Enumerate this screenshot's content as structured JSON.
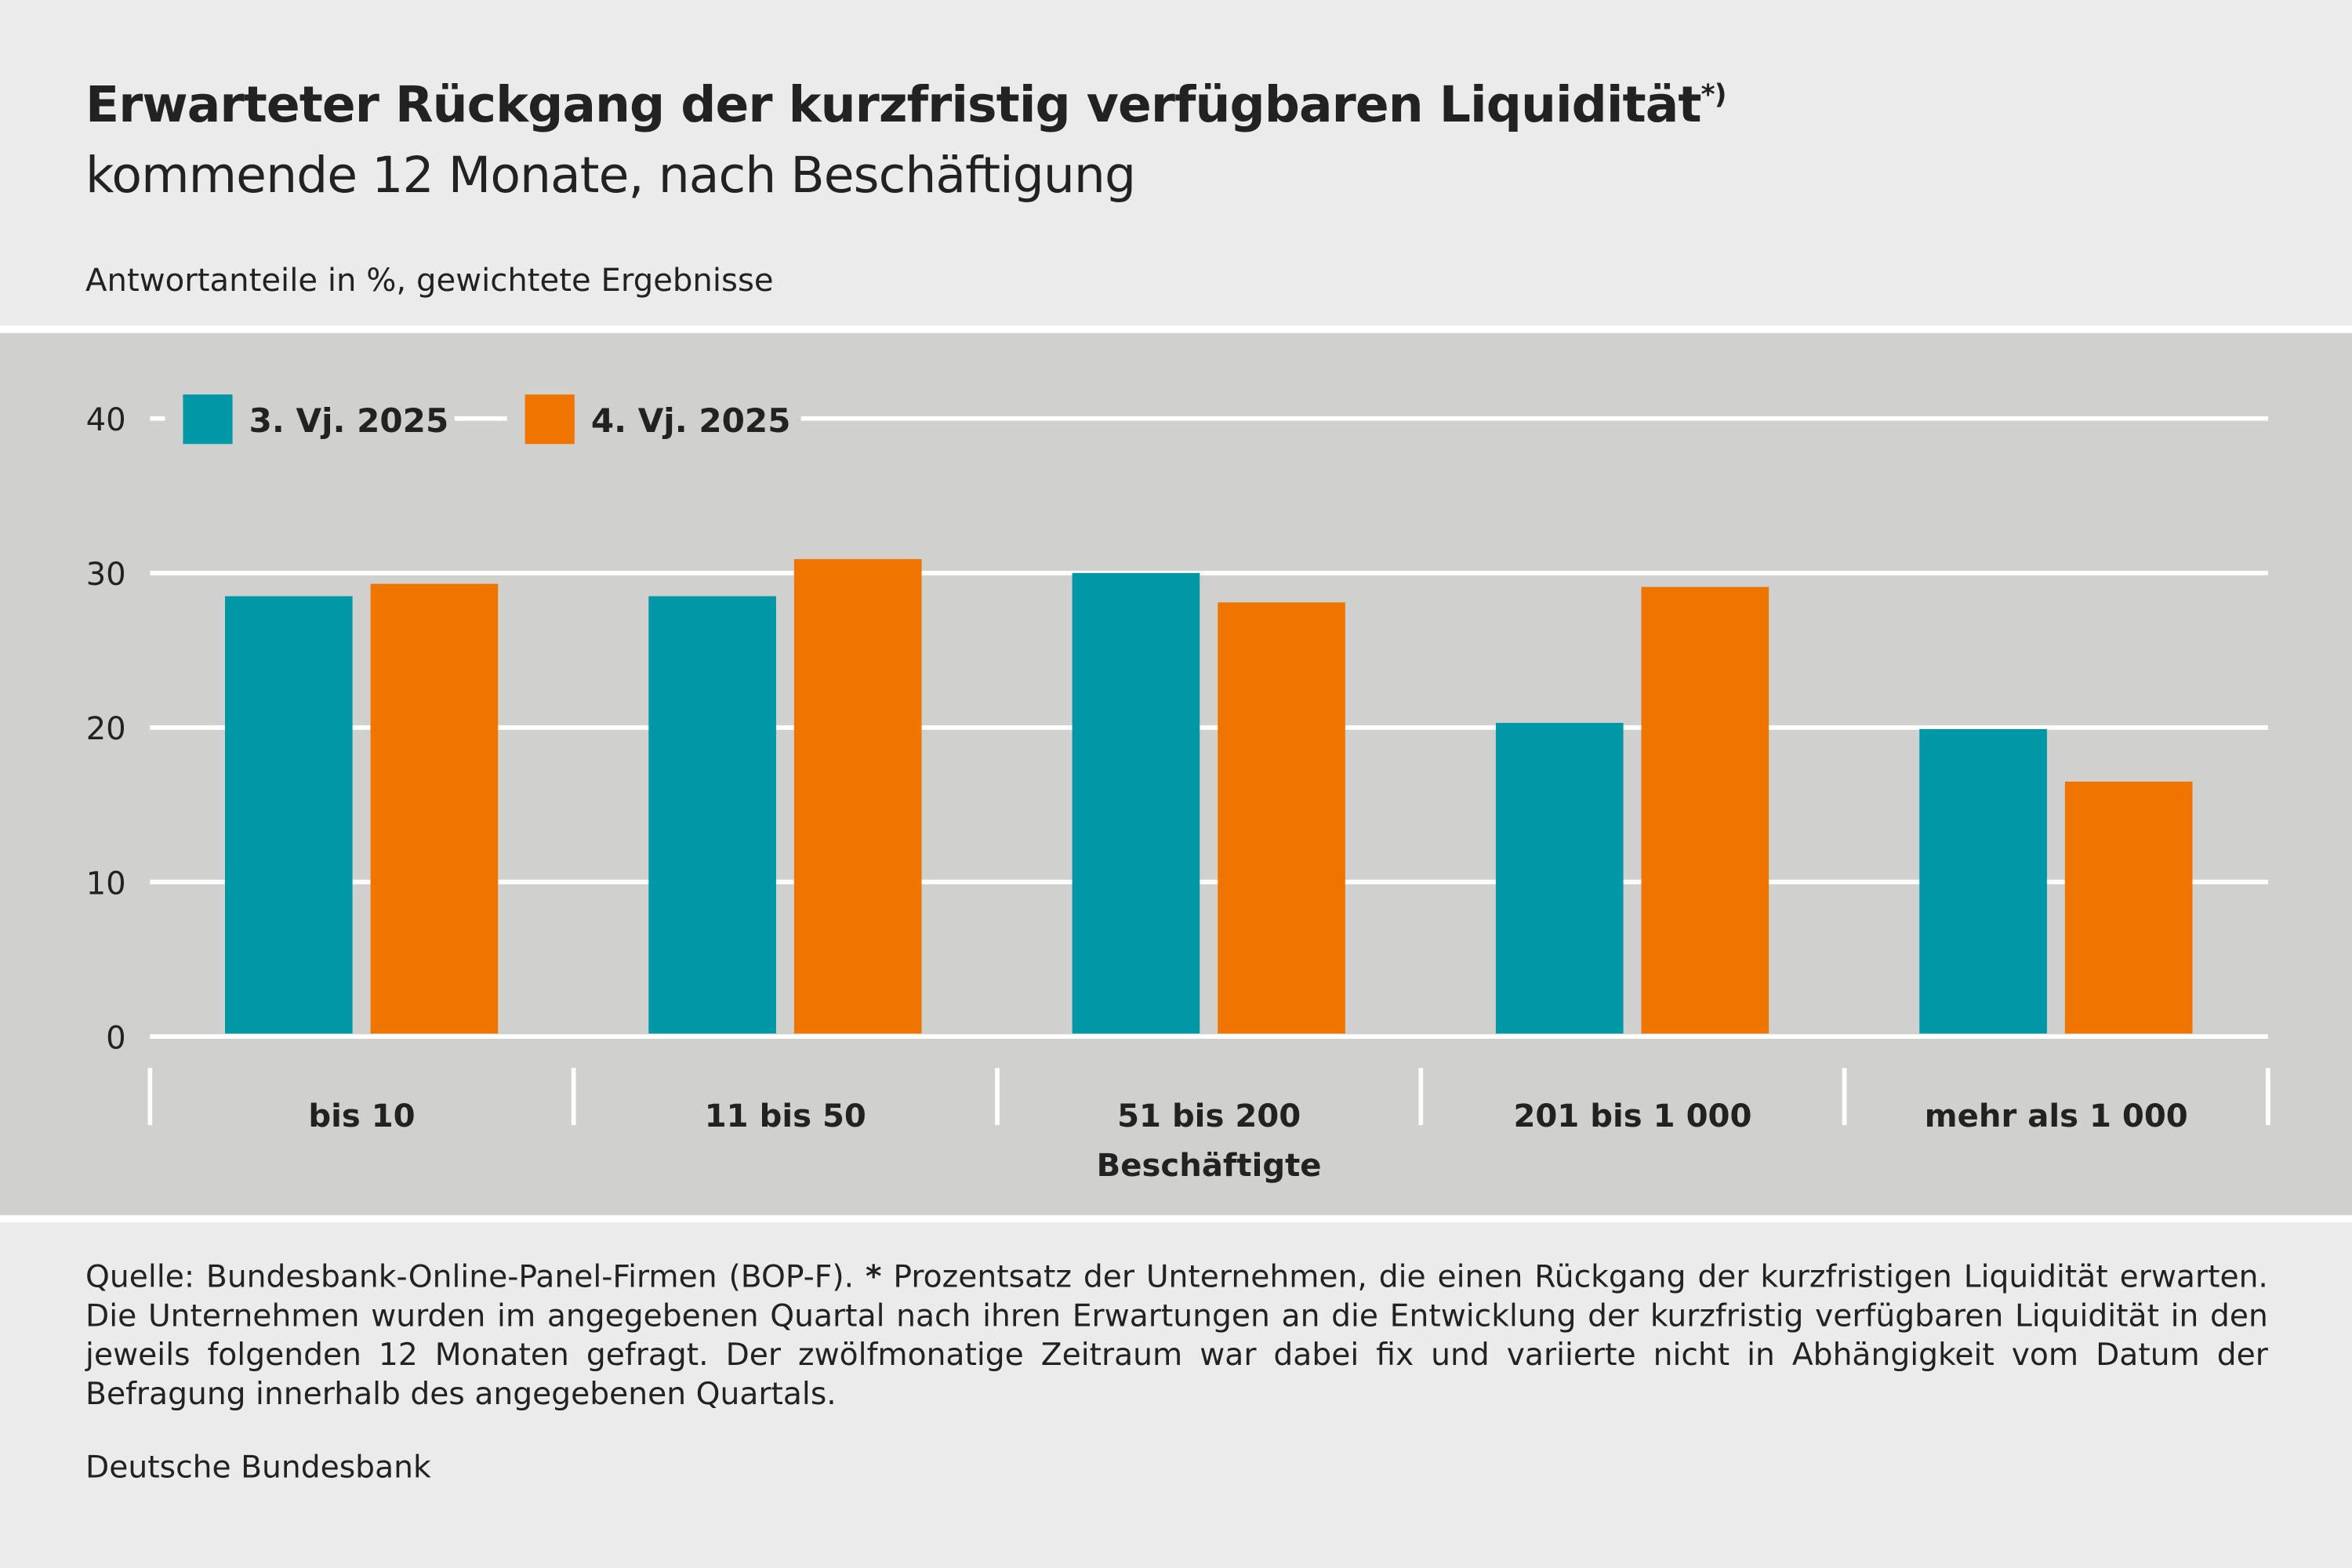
{
  "title": "Erwarteter Rückgang der kurzfristig verfügbaren Liquidität",
  "title_sup": "*)",
  "subtitle": "kommende 12 Monate, nach Beschäftigung",
  "unit_label": "Antwortanteile in %, gewichtete Ergebnisse",
  "footnote_prefix": "Quelle: Bundesbank-Online-Panel-Firmen (BOP-F). ",
  "footnote_star": "*",
  "footnote_text": " Prozentsatz der Unternehmen, die einen Rückgang der kurzfristigen Liquidität erwarten. Die Unternehmen wurden im angegebenen Quartal nach ihren Erwartungen an die Entwicklung der kurzfristig verfügba­ren Liquidität in den jeweils folgenden 12 Monaten gefragt. Der zwölfmonatige Zeitraum war dabei fix und variierte nicht in Ab­hängigkeit vom Datum der Befragung innerhalb des angegebenen Quartals.",
  "source": "Deutsche Bundesbank",
  "chart_data": {
    "type": "bar",
    "xlabel": "Beschäftigte",
    "ylabel": "",
    "ylim": [
      0,
      40
    ],
    "yticks": [
      "0",
      "10",
      "20",
      "30",
      "40"
    ],
    "grid": true,
    "legend_placement": "top-left",
    "categories": [
      "bis 10",
      "11 bis 50",
      "51 bis 200",
      "201 bis 1 000",
      "mehr als 1 000"
    ],
    "series": [
      {
        "name": "3. Vj. 2025",
        "color": "#0098a6",
        "values": [
          28.5,
          28.5,
          30.0,
          20.3,
          19.9
        ]
      },
      {
        "name": "4. Vj. 2025",
        "color": "#f07400",
        "values": [
          29.3,
          30.9,
          28.1,
          29.1,
          16.5
        ]
      }
    ]
  }
}
